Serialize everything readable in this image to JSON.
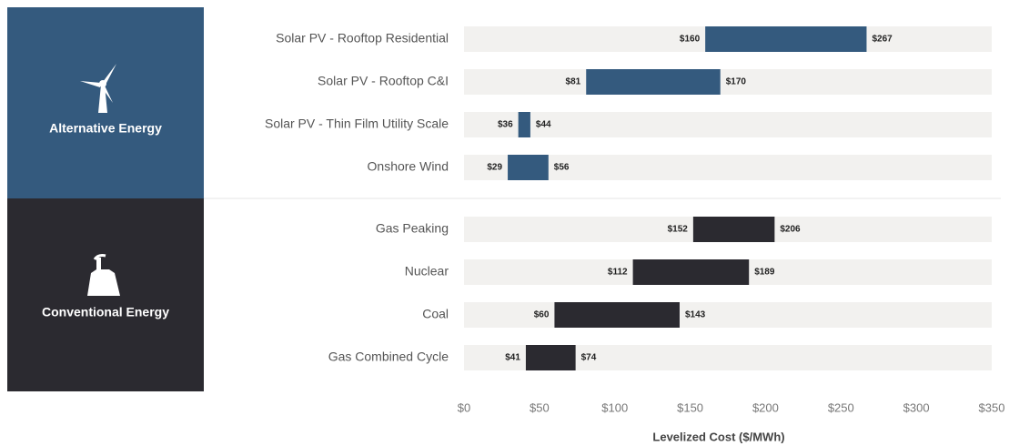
{
  "chart_data": {
    "type": "range_bar",
    "xlabel": "Levelized Cost ($/MWh)",
    "xlim": [
      0,
      350
    ],
    "xticks": [
      {
        "value": 0,
        "label": "$0"
      },
      {
        "value": 50,
        "label": "$50"
      },
      {
        "value": 100,
        "label": "$100"
      },
      {
        "value": 150,
        "label": "$150"
      },
      {
        "value": 200,
        "label": "$200"
      },
      {
        "value": 250,
        "label": "$250"
      },
      {
        "value": 300,
        "label": "$300"
      },
      {
        "value": 350,
        "label": "$350"
      }
    ],
    "groups": [
      {
        "name": "Alternative Energy",
        "color": "#345a7e",
        "categories": [
          "Solar PV - Rooftop Residential",
          "Solar PV - Rooftop C&I",
          "Solar PV - Thin Film Utility Scale",
          "Onshore Wind"
        ],
        "low": [
          160,
          81,
          36,
          29
        ],
        "high": [
          267,
          170,
          44,
          56
        ],
        "low_labels": [
          "$160",
          "$81",
          "$36",
          "$29"
        ],
        "high_labels": [
          "$267",
          "$170",
          "$44",
          "$56"
        ]
      },
      {
        "name": "Conventional Energy",
        "color": "#2b2a30",
        "categories": [
          "Gas Peaking",
          "Nuclear",
          "Coal",
          "Gas Combined Cycle"
        ],
        "low": [
          152,
          112,
          60,
          41
        ],
        "high": [
          206,
          189,
          143,
          74
        ],
        "low_labels": [
          "$152",
          "$112",
          "$60",
          "$41"
        ],
        "high_labels": [
          "$206",
          "$189",
          "$143",
          "$74"
        ]
      }
    ]
  }
}
